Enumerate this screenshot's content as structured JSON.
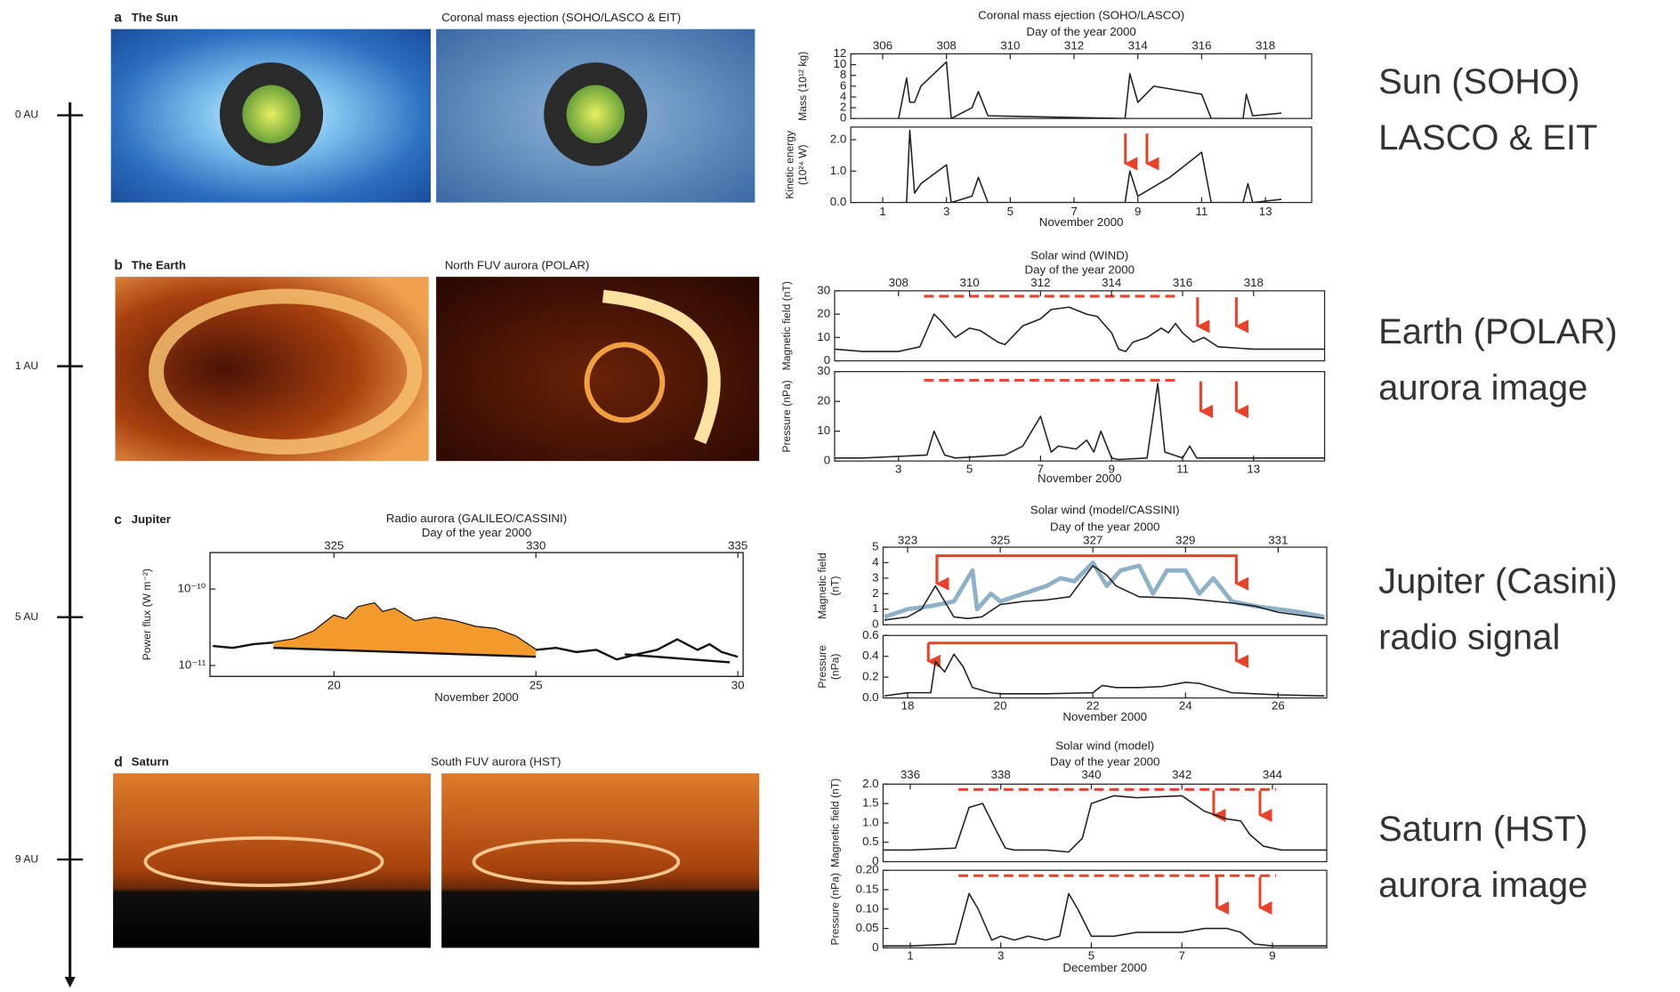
{
  "time_axis": {
    "ticks": [
      "0 AU",
      "1 AU",
      "5 AU",
      "9 AU"
    ]
  },
  "panels": [
    {
      "letter": "a",
      "name": "The Sun",
      "image_title": "Coronal mass ejection (SOHO/LASCO & EIT)",
      "caption": [
        "Sun (SOHO)",
        "LASCO & EIT"
      ]
    },
    {
      "letter": "b",
      "name": "The Earth",
      "image_title": "North FUV aurora (POLAR)",
      "caption": [
        "Earth (POLAR)",
        "aurora image"
      ]
    },
    {
      "letter": "c",
      "name": "Jupiter",
      "caption": [
        "Jupiter (Casini)",
        "radio signal"
      ]
    },
    {
      "letter": "d",
      "name": "Saturn",
      "image_title": "South FUV aurora (HST)",
      "caption": [
        "Saturn (HST)",
        "aurora image"
      ]
    }
  ],
  "chart_data": [
    {
      "type": "line",
      "title": "Coronal mass ejection (SOHO/LASCO)",
      "top_label": "Day of the year 2000",
      "x2lim": [
        305,
        319.45
      ],
      "x2ticks": [
        306,
        308,
        310,
        312,
        314,
        316,
        318
      ],
      "xlabel": "November 2000",
      "xlim": [
        0,
        14.45
      ],
      "xticks": [
        1,
        3,
        5,
        7,
        9,
        11,
        13
      ],
      "subplots": [
        {
          "ylabel": [
            "Mass (10¹² kg)"
          ],
          "ylim": [
            0,
            12
          ],
          "yticks": [
            0,
            2,
            4,
            6,
            8,
            10,
            12
          ],
          "series": [
            {
              "color": "#222222",
              "x": [
                1.5,
                1.75,
                1.85,
                2.0,
                2.2,
                3.0,
                3.15,
                3.8,
                4.0,
                4.3,
                8.6,
                8.75,
                9.0,
                9.5,
                10.5,
                11.0,
                11.3,
                12.3,
                12.4,
                12.6,
                13.5
              ],
              "values": [
                0,
                7.5,
                3,
                3,
                6,
                10.5,
                0,
                2,
                5,
                0.5,
                0,
                8.3,
                3,
                6,
                5,
                4.5,
                0,
                0,
                4.5,
                0.5,
                1
              ]
            }
          ]
        },
        {
          "ylabel": [
            "Kinetic energy",
            "(10²⁴ W)"
          ],
          "ylim": [
            0,
            2.4
          ],
          "yticks": [
            {
              "value": 0,
              "label": "0.0"
            },
            {
              "value": 1,
              "label": "1.0"
            },
            {
              "value": 2,
              "label": "2.0"
            }
          ],
          "series": [
            {
              "color": "#222222",
              "x": [
                1.5,
                1.75,
                1.85,
                2.0,
                2.2,
                3.0,
                3.15,
                3.8,
                4.0,
                4.3,
                8.6,
                8.75,
                9.0,
                10.0,
                11.0,
                11.3,
                12.3,
                12.45,
                12.6,
                13.5
              ],
              "values": [
                0,
                0,
                2.3,
                0.3,
                0.6,
                1.2,
                0,
                0.2,
                0.8,
                0,
                0,
                1.0,
                0.2,
                0.8,
                1.6,
                0,
                0,
                0.6,
                0,
                0.1
              ]
            }
          ]
        }
      ]
    },
    {
      "type": "line",
      "title": "Solar wind (WIND)",
      "top_label": "Day of the year 2000",
      "x2lim": [
        306.2,
        320
      ],
      "x2ticks": [
        308,
        310,
        312,
        314,
        316,
        318
      ],
      "xlabel": "November 2000",
      "xlim": [
        1.2,
        15
      ],
      "xticks": [
        3,
        5,
        7,
        9,
        11,
        13
      ],
      "subplots": [
        {
          "ylabel": [
            "Magnetic field (nT)"
          ],
          "ylim": [
            0,
            30
          ],
          "yticks": [
            0,
            10,
            20,
            30
          ],
          "series": [
            {
              "color": "#222222",
              "x": [
                1.2,
                2,
                3,
                3.6,
                4,
                4.2,
                4.6,
                5,
                5.3,
                5.8,
                6,
                6.5,
                7,
                7.3,
                7.8,
                8.3,
                8.6,
                9,
                9.2,
                9.4,
                9.6,
                10,
                10.4,
                10.6,
                10.8,
                11,
                11.3,
                11.6,
                12,
                13,
                14,
                15
              ],
              "values": [
                5,
                4,
                4,
                6,
                20,
                17,
                10,
                14,
                13,
                8,
                7,
                15,
                18,
                22,
                23,
                20,
                19,
                12,
                5,
                4,
                8,
                10,
                14,
                12,
                16,
                12,
                8,
                10,
                6,
                5,
                5,
                5
              ]
            }
          ]
        },
        {
          "ylabel": [
            "Pressure (nPa)"
          ],
          "ylim": [
            0,
            30
          ],
          "yticks": [
            0,
            10,
            20,
            30
          ],
          "series": [
            {
              "color": "#222222",
              "x": [
                1.2,
                2,
                3.8,
                4,
                4.3,
                4.6,
                6,
                6.5,
                7,
                7.3,
                7.5,
                8,
                8.3,
                8.5,
                8.7,
                9,
                9.2,
                10,
                10.3,
                10.5,
                11,
                11.2,
                11.4,
                12,
                13,
                14,
                15
              ],
              "values": [
                1,
                1,
                2,
                10,
                2,
                1,
                2,
                5,
                15,
                3,
                5,
                4,
                7,
                3,
                10,
                1,
                0.5,
                1,
                26,
                3,
                1,
                5,
                1,
                1,
                1,
                1,
                1
              ]
            }
          ]
        }
      ]
    },
    {
      "type": "line",
      "title": "Radio aurora (GALILEO/CASSINI)",
      "top_label": "Day of the year 2000",
      "x2lim": [
        321.93,
        335.13
      ],
      "x2ticks": [
        325,
        330,
        335
      ],
      "xlabel": "November 2000",
      "xlim": [
        16.93,
        30.13
      ],
      "xticks": [
        20,
        25,
        30
      ],
      "subplots": [
        {
          "ylabel": [
            "Power flux (W m⁻²)"
          ],
          "log_scale": true,
          "ylim": [
            7.2e-12,
            3e-10
          ],
          "yticks": [
            {
              "value": 1e-10,
              "label": "10⁻¹⁰"
            },
            {
              "value": 1e-11,
              "label": "10⁻¹¹"
            }
          ],
          "series": [
            {
              "color": "#111111",
              "x": [
                17,
                17.5,
                18,
                18.5,
                19,
                19.5,
                20,
                20.3,
                20.6,
                21,
                21.2,
                21.5,
                22,
                22.5,
                23,
                23.5,
                24,
                24.5,
                25,
                25.5,
                26,
                26.5,
                27,
                27.5,
                28,
                28.5,
                29,
                29.3,
                29.6,
                30
              ],
              "values": [
                1.8e-11,
                1.7e-11,
                1.9e-11,
                2e-11,
                2.2e-11,
                2.8e-11,
                4.5e-11,
                4e-11,
                5.8e-11,
                6.5e-11,
                5e-11,
                5.5e-11,
                3.8e-11,
                4.2e-11,
                3.8e-11,
                3.2e-11,
                3e-11,
                2.4e-11,
                1.6e-11,
                1.7e-11,
                1.5e-11,
                1.6e-11,
                1.2e-11,
                1.4e-11,
                1.6e-11,
                2.2e-11,
                1.6e-11,
                1.9e-11,
                1.5e-11,
                1.3e-11
              ]
            },
            {
              "style": "area",
              "color": "#f39a2c",
              "x": [
                18.5,
                19,
                19.5,
                20,
                20.3,
                20.6,
                21,
                21.2,
                21.5,
                22,
                22.5,
                23,
                23.5,
                24,
                24.5,
                25
              ],
              "values": [
                2e-11,
                2.2e-11,
                2.8e-11,
                4.5e-11,
                4e-11,
                5.8e-11,
                6.5e-11,
                5e-11,
                5.5e-11,
                3.8e-11,
                4.2e-11,
                3.8e-11,
                3.2e-11,
                3e-11,
                2.4e-11,
                1.6e-11
              ],
              "base_x": [
                18.5,
                25
              ],
              "base": [
                1.7e-11,
                1.3e-11
              ]
            },
            {
              "color": "#111111",
              "x": [
                27.2,
                29.8
              ],
              "values": [
                1.4e-11,
                1.1e-11
              ]
            }
          ]
        }
      ]
    },
    {
      "type": "line",
      "title": "Solar wind (model/CASSINI)",
      "top_label": "Day of the year 2000",
      "x2lim": [
        322.47,
        332.05
      ],
      "x2ticks": [
        323,
        325,
        327,
        329,
        331
      ],
      "xlabel": "November 2000",
      "xlim": [
        17.47,
        27.05
      ],
      "xticks": [
        18,
        20,
        22,
        24,
        26
      ],
      "subplots": [
        {
          "ylabel": [
            "Magnetic field",
            "(nT)"
          ],
          "ylim": [
            0,
            5
          ],
          "yticks": [
            0,
            1,
            2,
            3,
            4,
            5
          ],
          "series": [
            {
              "color": "#8fb1c8",
              "width": 4,
              "x": [
                17.5,
                18,
                18.5,
                19,
                19.4,
                19.5,
                19.8,
                20,
                20.5,
                21,
                21.3,
                21.6,
                22,
                22.3,
                22.6,
                23,
                23.3,
                23.6,
                24,
                24.3,
                24.6,
                25,
                25.5,
                26,
                26.5,
                27
              ],
              "values": [
                0.5,
                1,
                1.2,
                1.5,
                3.5,
                1,
                2,
                1.5,
                2,
                2.5,
                3,
                2.8,
                4,
                2.5,
                3.5,
                3.8,
                2,
                3.5,
                3.5,
                2,
                3.0,
                1.5,
                1.2,
                1,
                0.8,
                0.5
              ]
            },
            {
              "color": "#222222",
              "x": [
                17.5,
                18,
                18.3,
                18.6,
                18.8,
                19,
                19.3,
                19.6,
                20,
                20.5,
                21,
                21.5,
                22,
                22.3,
                22.5,
                23,
                24,
                25,
                25.5,
                26,
                27
              ],
              "values": [
                0.3,
                0.5,
                1,
                2.5,
                1.5,
                0.5,
                0.4,
                0.5,
                1.3,
                1.5,
                1.6,
                1.8,
                3.8,
                3.2,
                2.5,
                1.8,
                1.7,
                1.4,
                1.2,
                0.8,
                0.4
              ]
            }
          ]
        },
        {
          "ylabel": [
            "Pressure",
            "(nPa)"
          ],
          "ylim": [
            0,
            0.6
          ],
          "yticks": [
            {
              "value": 0,
              "label": "0.0"
            },
            0.2,
            0.4,
            0.6
          ],
          "series": [
            {
              "color": "#222222",
              "x": [
                17.5,
                18,
                18.5,
                18.6,
                18.8,
                19,
                19.2,
                19.4,
                19.8,
                20,
                21,
                22,
                22.2,
                22.5,
                23,
                23.5,
                24,
                24.3,
                24.6,
                25,
                26,
                27
              ],
              "values": [
                0.02,
                0.05,
                0.05,
                0.35,
                0.25,
                0.42,
                0.3,
                0.1,
                0.05,
                0.04,
                0.04,
                0.05,
                0.12,
                0.1,
                0.1,
                0.11,
                0.15,
                0.14,
                0.1,
                0.05,
                0.03,
                0.02
              ]
            }
          ]
        }
      ]
    },
    {
      "type": "line",
      "title": "Solar wind (model)",
      "top_label": "Day of the year 2000",
      "x2lim": [
        335.4,
        345.2
      ],
      "x2ticks": [
        336,
        338,
        340,
        342,
        344
      ],
      "xlabel": "December 2000",
      "xlim": [
        0.4,
        10.2
      ],
      "xticks": [
        1,
        3,
        5,
        7,
        9
      ],
      "subplots": [
        {
          "ylabel": [
            "Magnetic field (nT)"
          ],
          "ylim": [
            0,
            2
          ],
          "yticks": [
            0,
            0.5,
            {
              "value": 1,
              "label": "1.0"
            },
            1.5,
            {
              "value": 2,
              "label": "2.0"
            }
          ],
          "series": [
            {
              "color": "#222222",
              "x": [
                0.4,
                1,
                2,
                2.3,
                2.6,
                2.9,
                3.1,
                3.3,
                4,
                4.5,
                4.8,
                5,
                5.5,
                6,
                7,
                7.5,
                8,
                8.3,
                8.5,
                8.8,
                9.2,
                10.2
              ],
              "values": [
                0.3,
                0.3,
                0.35,
                1.4,
                1.5,
                0.8,
                0.35,
                0.3,
                0.3,
                0.25,
                0.6,
                1.5,
                1.7,
                1.65,
                1.7,
                1.3,
                1.1,
                1.05,
                0.7,
                0.4,
                0.3,
                0.3
              ]
            }
          ]
        },
        {
          "ylabel": [
            "Pressure (nPa)"
          ],
          "ylim": [
            0,
            0.2
          ],
          "yticks": [
            0,
            0.05,
            {
              "value": 0.1,
              "label": "0.10"
            },
            0.15,
            {
              "value": 0.2,
              "label": "0.20"
            }
          ],
          "series": [
            {
              "color": "#222222",
              "x": [
                0.4,
                1,
                2,
                2.3,
                2.5,
                2.8,
                3.0,
                3.3,
                3.6,
                4,
                4.3,
                4.5,
                4.7,
                5,
                5.5,
                6,
                7,
                7.5,
                8,
                8.3,
                8.6,
                9,
                10.2
              ],
              "values": [
                0.005,
                0.005,
                0.01,
                0.14,
                0.1,
                0.02,
                0.03,
                0.02,
                0.03,
                0.02,
                0.03,
                0.14,
                0.1,
                0.03,
                0.03,
                0.04,
                0.04,
                0.05,
                0.05,
                0.04,
                0.01,
                0.005,
                0.005
              ]
            }
          ]
        }
      ]
    }
  ]
}
